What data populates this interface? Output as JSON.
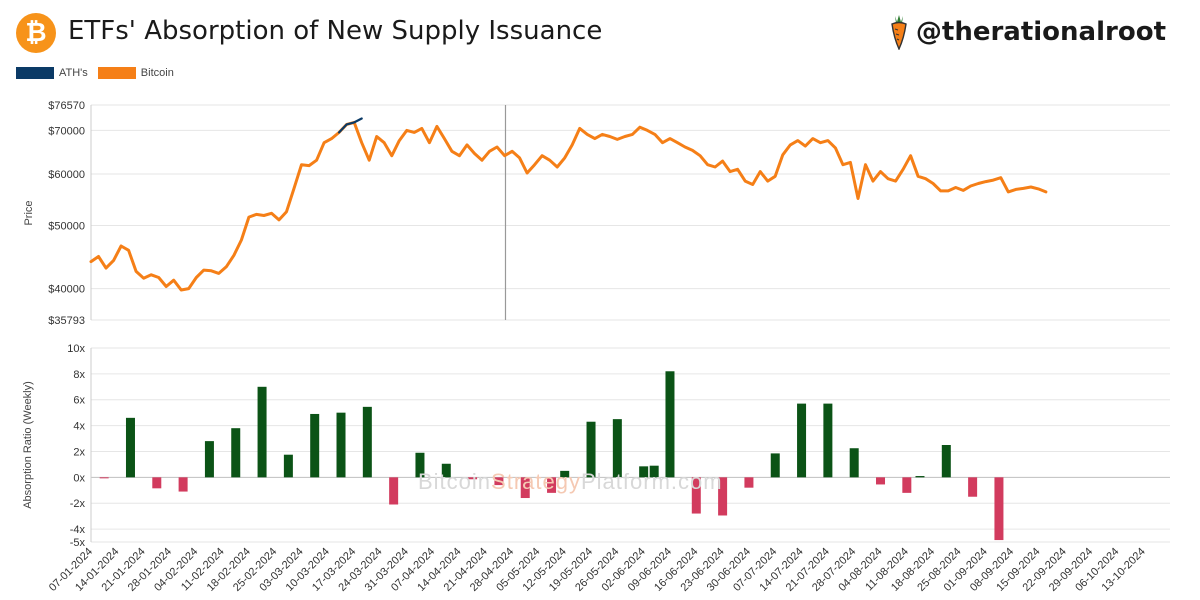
{
  "header": {
    "title": "ETFs' Absorption of New Supply Issuance",
    "brand_handle": "@therationalroot",
    "logo_icon": "bitcoin-icon",
    "brand_icon": "carrot-icon"
  },
  "legend": [
    {
      "label": "ATH's",
      "color": "#0b3a66"
    },
    {
      "label": "Bitcoin",
      "color": "#f57f17"
    }
  ],
  "watermark": {
    "part1": "Bitcoin",
    "part2": "Strategy",
    "part3": "Platform.com"
  },
  "chart_data": [
    {
      "type": "line",
      "title": "ETFs' Absorption of New Supply Issuance",
      "ylabel": "Price",
      "yscale": "log",
      "ylim": [
        35793,
        76570
      ],
      "yticks": [
        35793,
        40000,
        50000,
        60000,
        70000,
        76570
      ],
      "ytick_labels": [
        "$35793",
        "$40000",
        "$50000",
        "$60000",
        "$70000",
        "$76570"
      ],
      "marker_date": "24-04-2024",
      "series": [
        {
          "name": "Bitcoin",
          "color": "#f57f17",
          "x_days": [
            0,
            2,
            4,
            6,
            8,
            10,
            12,
            14,
            16,
            18,
            20,
            22,
            24,
            26,
            28,
            30,
            32,
            34,
            36,
            38,
            40,
            42,
            44,
            46,
            48,
            50,
            52,
            54,
            56,
            58,
            60,
            62,
            64,
            66,
            68,
            70,
            72,
            74,
            76,
            78,
            80,
            82,
            84,
            86,
            88,
            90,
            92,
            94,
            96,
            98,
            100,
            102,
            104,
            106,
            108,
            110,
            112,
            114,
            116,
            118,
            120,
            122,
            124,
            126,
            128,
            130,
            132,
            134,
            136,
            138,
            140,
            142,
            144,
            146,
            148,
            150,
            152,
            154,
            156,
            158,
            160,
            162,
            164,
            166,
            168,
            170,
            172,
            174,
            176,
            178,
            180,
            182,
            184,
            186,
            188,
            190,
            192,
            194,
            196,
            198,
            200,
            202,
            204,
            206,
            208,
            210,
            212,
            214,
            216,
            218,
            220,
            222,
            224,
            226,
            228,
            230,
            232,
            234,
            236,
            238,
            240,
            242,
            244,
            246,
            248,
            250,
            252,
            254
          ],
          "values": [
            44000,
            44800,
            43000,
            44200,
            46500,
            45800,
            42500,
            41500,
            42000,
            41600,
            40300,
            41200,
            39800,
            40000,
            41600,
            42700,
            42600,
            42200,
            43200,
            45000,
            47500,
            51500,
            52000,
            51800,
            52200,
            51000,
            52500,
            57000,
            62000,
            61800,
            63000,
            67000,
            68000,
            69500,
            71500,
            72000,
            67000,
            63000,
            68500,
            67000,
            64000,
            67500,
            70000,
            69500,
            70500,
            67000,
            71000,
            68000,
            65000,
            64000,
            66500,
            64500,
            63000,
            65000,
            66000,
            64000,
            65000,
            63500,
            60200,
            62000,
            64000,
            63000,
            61500,
            63500,
            66500,
            70500,
            69000,
            68000,
            69000,
            68500,
            67800,
            68500,
            69000,
            70800,
            70000,
            69000,
            67000,
            68000,
            67000,
            66000,
            65200,
            64000,
            62000,
            61500,
            62800,
            60500,
            61000,
            58500,
            57800,
            60500,
            58500,
            59500,
            64200,
            66500,
            67500,
            66200,
            68000,
            67000,
            67500,
            65800,
            62000,
            62500,
            55000,
            62000,
            58500,
            60500,
            59000,
            58500,
            61000,
            64000,
            59500,
            59000,
            58000,
            56500,
            56500,
            57200,
            56600,
            57500,
            58000,
            58400,
            58700,
            59200,
            56300,
            56800,
            57000,
            57300,
            56900,
            56300
          ],
          "x_start": "07-01-2024"
        },
        {
          "name": "ATH's",
          "color": "#0b3a66",
          "x_days": [
            66,
            68,
            70,
            72
          ],
          "values": [
            69500,
            71500,
            72000,
            73000
          ]
        }
      ]
    },
    {
      "type": "bar",
      "ylabel": "Absorption Ratio (Weekly)",
      "ylim": [
        -5,
        10
      ],
      "yticks": [
        -5,
        -4,
        -2,
        0,
        2,
        4,
        6,
        8,
        10
      ],
      "ytick_labels": [
        "-5x",
        "-4x",
        "-2x",
        "0x",
        "2x",
        "4x",
        "6x",
        "8x",
        "10x"
      ],
      "categories": [
        "07-01-2024",
        "14-01-2024",
        "21-01-2024",
        "28-01-2024",
        "04-02-2024",
        "11-02-2024",
        "18-02-2024",
        "25-02-2024",
        "03-03-2024",
        "10-03-2024",
        "17-03-2024",
        "24-03-2024",
        "31-03-2024",
        "07-04-2024",
        "14-04-2024",
        "21-04-2024",
        "28-04-2024",
        "05-05-2024",
        "12-05-2024",
        "19-05-2024",
        "26-05-2024",
        "02-06-2024",
        "09-06-2024",
        "16-06-2024",
        "23-06-2024",
        "30-06-2024",
        "07-07-2024",
        "14-07-2024",
        "21-07-2024",
        "28-07-2024",
        "04-08-2024",
        "11-08-2024",
        "18-08-2024",
        "25-08-2024",
        "01-09-2024",
        "08-09-2024",
        "15-09-2024",
        "22-09-2024",
        "29-09-2024",
        "06-10-2024",
        "13-10-2024"
      ],
      "bars": [
        {
          "x": 0.5,
          "value": -0.05
        },
        {
          "x": 1.5,
          "value": 4.6
        },
        {
          "x": 2.5,
          "value": -0.85
        },
        {
          "x": 3.5,
          "value": -1.1
        },
        {
          "x": 4.5,
          "value": 2.8
        },
        {
          "x": 5.5,
          "value": 3.8
        },
        {
          "x": 6.5,
          "value": 7.0
        },
        {
          "x": 7.5,
          "value": 1.75
        },
        {
          "x": 8.5,
          "value": 4.9
        },
        {
          "x": 9.5,
          "value": 5.0
        },
        {
          "x": 10.5,
          "value": 5.45
        },
        {
          "x": 11.5,
          "value": -2.1
        },
        {
          "x": 12.5,
          "value": 1.9
        },
        {
          "x": 13.5,
          "value": 1.05
        },
        {
          "x": 14.5,
          "value": -0.15
        },
        {
          "x": 15.5,
          "value": -0.6
        },
        {
          "x": 16.5,
          "value": -1.6
        },
        {
          "x": 17.5,
          "value": -1.2
        },
        {
          "x": 18.0,
          "value": 0.5
        },
        {
          "x": 19.0,
          "value": 4.3
        },
        {
          "x": 20.0,
          "value": 4.5
        },
        {
          "x": 21.0,
          "value": 0.85
        },
        {
          "x": 21.4,
          "value": 0.9
        },
        {
          "x": 22.0,
          "value": 8.2
        },
        {
          "x": 23.0,
          "value": -2.8
        },
        {
          "x": 24.0,
          "value": -2.95
        },
        {
          "x": 25.0,
          "value": -0.8
        },
        {
          "x": 26.0,
          "value": 1.85
        },
        {
          "x": 27.0,
          "value": 5.7
        },
        {
          "x": 28.0,
          "value": 5.7
        },
        {
          "x": 29.0,
          "value": 2.25
        },
        {
          "x": 30.0,
          "value": -0.55
        },
        {
          "x": 31.0,
          "value": -1.2
        },
        {
          "x": 31.5,
          "value": 0.1
        },
        {
          "x": 32.5,
          "value": 2.5
        },
        {
          "x": 33.5,
          "value": -1.5
        },
        {
          "x": 34.5,
          "value": -4.85
        }
      ],
      "positive_color": "#0b5316",
      "negative_color": "#d23b5e"
    }
  ]
}
